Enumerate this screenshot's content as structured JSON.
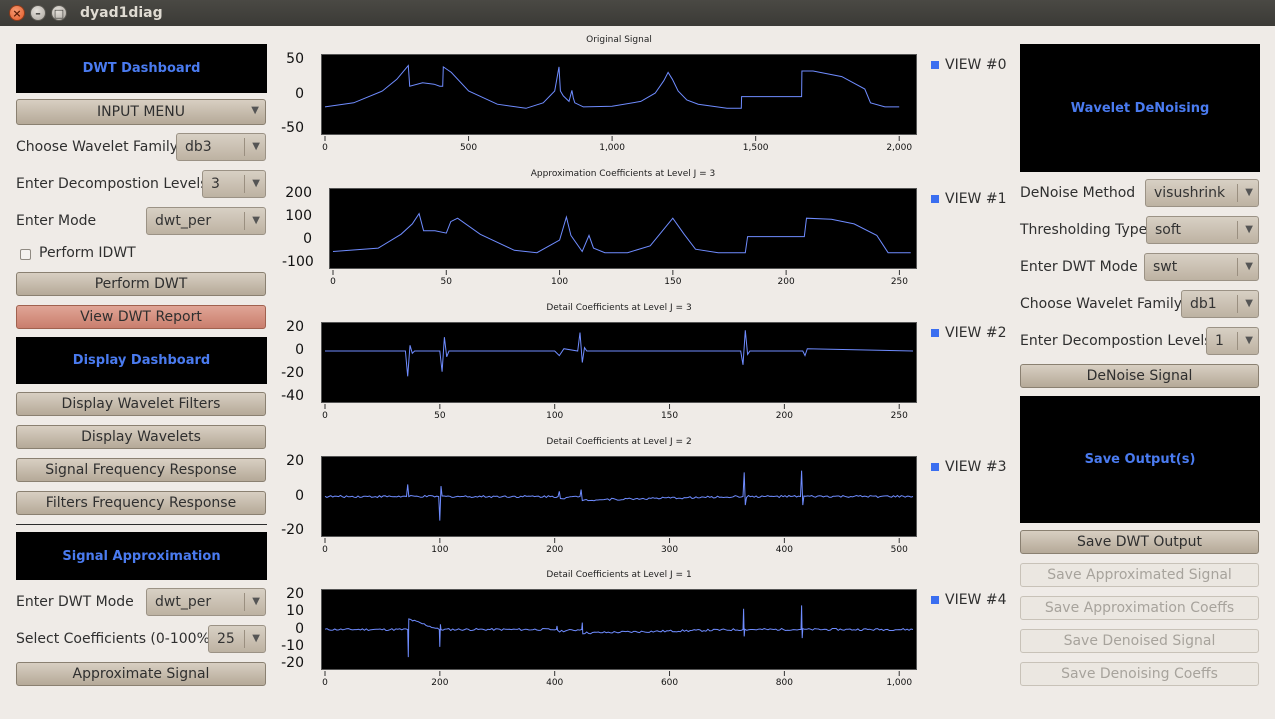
{
  "window": {
    "title": "dyad1diag"
  },
  "left": {
    "dwt_dashboard": "DWT Dashboard",
    "input_menu": "INPUT MENU",
    "wavelet_family_label": "Choose Wavelet Family",
    "wavelet_family_value": "db3",
    "levels_label": "Enter Decompostion Levels",
    "levels_value": "3",
    "mode_label": "Enter Mode",
    "mode_value": "dwt_per",
    "idwt_label": "Perform IDWT",
    "perform_dwt": "Perform DWT",
    "view_report": "View DWT Report",
    "display_dashboard": "Display Dashboard",
    "display_filters": "Display Wavelet Filters",
    "display_wavelets": "Display Wavelets",
    "signal_freq": "Signal Frequency Response",
    "filters_freq": "Filters Frequency Response",
    "signal_approx": "Signal Approximation",
    "approx_mode_label": "Enter DWT Mode",
    "approx_mode_value": "dwt_per",
    "coeff_label": "Select Coefficients (0-100%)",
    "coeff_value": "25",
    "approximate_signal": "Approximate Signal"
  },
  "right": {
    "wavelet_denoising": "Wavelet DeNoising",
    "denoise_method_label": "DeNoise Method",
    "denoise_method_value": "visushrink",
    "threshold_label": "Thresholding Type",
    "threshold_value": "soft",
    "dwt_mode_label": "Enter DWT Mode",
    "dwt_mode_value": "swt",
    "wavelet_family_label": "Choose Wavelet Family",
    "wavelet_family_value": "db1",
    "levels_label": "Enter Decompostion Levels",
    "levels_value": "1",
    "denoise_signal": "DeNoise Signal",
    "save_outputs": "Save Output(s)",
    "save_dwt": "Save DWT Output",
    "save_approx_signal": "Save Approximated Signal",
    "save_approx_coeffs": "Save Approximation Coeffs",
    "save_denoised": "Save Denoised Signal",
    "save_denoising_coeffs": "Save Denoising Coeffs"
  },
  "views": [
    "VIEW #0",
    "VIEW #1",
    "VIEW #2",
    "VIEW #3",
    "VIEW #4"
  ],
  "colors": {
    "accent": "#4a7bf0",
    "signal": "#6f8cff",
    "plot_bg": "#000000"
  },
  "chart_data": [
    {
      "type": "line",
      "title": "Original Signal",
      "xlim": [
        0,
        2048
      ],
      "ylim": [
        -50,
        50
      ],
      "xticks": [
        0,
        500,
        1000,
        1500,
        2000
      ],
      "xtick_labels": [
        "0",
        "500",
        "1,000",
        "1,500",
        "2,000"
      ],
      "yticks": [
        50,
        0,
        -50
      ],
      "x": [
        0,
        100,
        200,
        250,
        290,
        295,
        340,
        380,
        400,
        410,
        412,
        440,
        500,
        600,
        700,
        760,
        800,
        815,
        820,
        830,
        850,
        860,
        865,
        870,
        900,
        1000,
        1100,
        1150,
        1180,
        1195,
        1210,
        1230,
        1260,
        1300,
        1400,
        1450,
        1451,
        1660,
        1661,
        1700,
        1800,
        1880,
        1900,
        1950,
        2000
      ],
      "y": [
        -18,
        -12,
        5,
        22,
        42,
        12,
        17,
        15,
        12,
        12,
        40,
        32,
        5,
        -14,
        -20,
        -12,
        5,
        40,
        5,
        -2,
        -10,
        6,
        -5,
        -12,
        -18,
        -17,
        -10,
        2,
        20,
        32,
        22,
        5,
        -8,
        -14,
        -20,
        -20,
        -3,
        -3,
        34,
        34,
        26,
        8,
        -12,
        -18,
        -18
      ]
    },
    {
      "type": "line",
      "title": "Approximation Coefficients at Level J = 3",
      "xlim": [
        0,
        256
      ],
      "ylim": [
        -100,
        200
      ],
      "xticks": [
        0,
        50,
        100,
        150,
        200,
        250
      ],
      "yticks": [
        200,
        100,
        0,
        -100
      ],
      "x": [
        0,
        20,
        30,
        35,
        38,
        40,
        45,
        50,
        52,
        55,
        65,
        80,
        90,
        100,
        103,
        105,
        110,
        113,
        115,
        120,
        130,
        140,
        150,
        155,
        160,
        170,
        182,
        183,
        208,
        209,
        220,
        230,
        240,
        245,
        255
      ],
      "y": [
        -50,
        -35,
        25,
        70,
        115,
        40,
        40,
        30,
        80,
        95,
        25,
        -45,
        -55,
        0,
        100,
        20,
        -50,
        20,
        -35,
        -55,
        -55,
        -25,
        95,
        25,
        -40,
        -55,
        -55,
        15,
        15,
        95,
        90,
        70,
        20,
        -55,
        -55
      ]
    },
    {
      "type": "line",
      "title": "Detail Coefficients at Level J = 3",
      "xlim": [
        0,
        256
      ],
      "ylim": [
        -40,
        20
      ],
      "xticks": [
        0,
        50,
        100,
        150,
        200,
        250
      ],
      "yticks": [
        20,
        0,
        -20,
        -40
      ],
      "x": [
        0,
        35,
        36,
        37,
        38,
        39,
        50,
        51,
        52,
        53,
        54,
        100,
        102,
        104,
        110,
        111,
        112,
        113,
        114,
        150,
        181,
        182,
        183,
        184,
        185,
        208,
        209,
        210,
        256
      ],
      "y": [
        0,
        0,
        -22,
        5,
        -2,
        0,
        0,
        -18,
        12,
        -5,
        0,
        0,
        -4,
        2,
        0,
        16,
        -10,
        3,
        0,
        0,
        0,
        -12,
        18,
        -3,
        0,
        0,
        -4,
        2,
        0
      ]
    },
    {
      "type": "line",
      "title": "Detail Coefficients at Level J = 2",
      "xlim": [
        0,
        512
      ],
      "ylim": [
        -20,
        20
      ],
      "xticks": [
        0,
        100,
        200,
        300,
        400,
        500
      ],
      "yticks": [
        20,
        0,
        -20
      ],
      "x": [
        0,
        71,
        72,
        73,
        99,
        100,
        101,
        102,
        203,
        204,
        205,
        222,
        223,
        224,
        364,
        365,
        366,
        367,
        414,
        415,
        416,
        417,
        512
      ],
      "y": [
        0,
        0,
        7,
        0,
        0,
        -14,
        6,
        0,
        0,
        3,
        -1,
        0,
        4,
        -2,
        0,
        14,
        -5,
        0,
        0,
        15,
        -5,
        0,
        0
      ],
      "noise": true
    },
    {
      "type": "line",
      "title": "Detail Coefficients at Level J = 1",
      "xlim": [
        0,
        1024
      ],
      "ylim": [
        -20,
        20
      ],
      "xticks": [
        0,
        200,
        400,
        600,
        800,
        1000
      ],
      "xtick_labels": [
        "0",
        "200",
        "400",
        "600",
        "800",
        "1,000"
      ],
      "yticks": [
        20,
        10,
        0,
        -10,
        -20
      ],
      "x": [
        0,
        144,
        145,
        146,
        199,
        200,
        201,
        202,
        403,
        404,
        405,
        447,
        448,
        449,
        728,
        729,
        730,
        731,
        829,
        830,
        831,
        832,
        1024
      ],
      "y": [
        0,
        0,
        -16,
        6,
        0,
        -10,
        3,
        0,
        0,
        2,
        -1,
        0,
        4,
        -2,
        0,
        12,
        -4,
        0,
        0,
        14,
        -5,
        0,
        0
      ],
      "noise": true
    }
  ]
}
